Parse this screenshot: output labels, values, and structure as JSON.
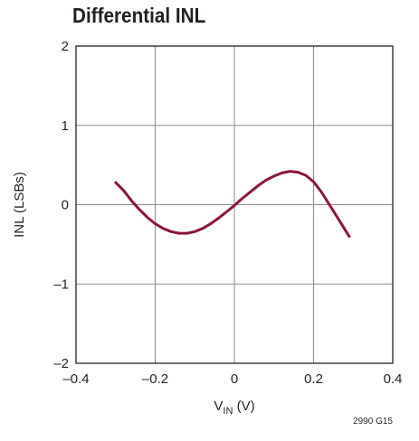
{
  "chart_data": {
    "type": "line",
    "title": "Differential INL",
    "xlabel_main": "V",
    "xlabel_sub": "IN",
    "xlabel_unit": " (V)",
    "ylabel": "INL (LSBs)",
    "xlim": [
      -0.4,
      0.4
    ],
    "ylim": [
      -2,
      2
    ],
    "x_ticks": [
      -0.4,
      -0.2,
      0,
      0.2,
      0.4
    ],
    "x_tick_labels": [
      "–0.4",
      "–0.2",
      "0",
      "0.2",
      "0.4"
    ],
    "y_ticks": [
      -2,
      -1,
      0,
      1,
      2
    ],
    "y_tick_labels": [
      "–2",
      "–1",
      "0",
      "1",
      "2"
    ],
    "grid": true,
    "line_color": "#8b1538",
    "series": [
      {
        "x": [
          -0.3,
          -0.28,
          -0.26,
          -0.24,
          -0.22,
          -0.2,
          -0.18,
          -0.16,
          -0.14,
          -0.12,
          -0.1,
          -0.08,
          -0.06,
          -0.04,
          -0.02,
          0.0,
          0.02,
          0.04,
          0.06,
          0.08,
          0.1,
          0.12,
          0.14,
          0.16,
          0.18,
          0.2,
          0.22,
          0.24,
          0.26,
          0.28,
          0.29
        ],
        "y": [
          0.28,
          0.18,
          0.05,
          -0.06,
          -0.16,
          -0.24,
          -0.3,
          -0.34,
          -0.36,
          -0.36,
          -0.34,
          -0.3,
          -0.24,
          -0.17,
          -0.09,
          -0.01,
          0.08,
          0.16,
          0.24,
          0.31,
          0.36,
          0.4,
          0.42,
          0.41,
          0.37,
          0.29,
          0.16,
          0.0,
          -0.16,
          -0.32,
          -0.4
        ]
      }
    ],
    "footnote": "2990 G15"
  }
}
